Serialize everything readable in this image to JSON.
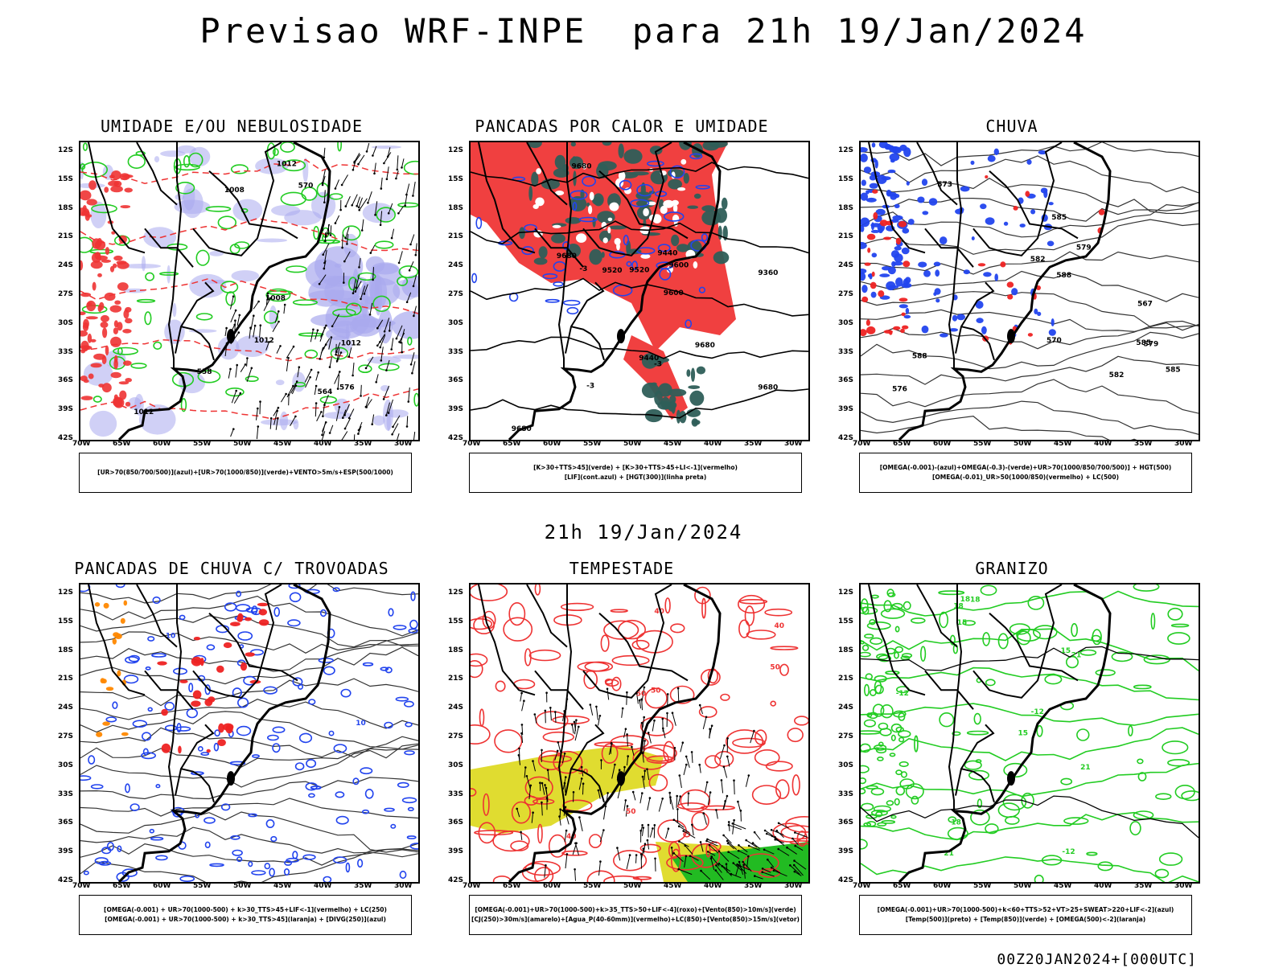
{
  "header": {
    "title": "Previsao WRF-INPE  para 21h 19/Jan/2024"
  },
  "mid_title": "21h 19/Jan/2024",
  "footer": "00Z20JAN2024+[000UTC]",
  "axes": {
    "lat_labels": [
      "12S",
      "15S",
      "18S",
      "21S",
      "24S",
      "27S",
      "30S",
      "33S",
      "36S",
      "39S",
      "42S"
    ],
    "lon_labels": [
      "70W",
      "65W",
      "60W",
      "55W",
      "50W",
      "45W",
      "40W",
      "35W",
      "30W"
    ]
  },
  "panels": [
    {
      "id": "umidade",
      "title": "UMIDADE E/OU NEBULOSIDADE",
      "legend": [
        "[UR>70(850/700/500)](azul)+[UR>70(1000/850)](verde)+VENTO>5m/s+ESP(500/1000)"
      ],
      "contour_labels": [
        "1012",
        "1012",
        "1008",
        "1012",
        "1008",
        "1012",
        "576",
        "570",
        "564",
        "558"
      ],
      "colors": {
        "fill": "#a9a9ee",
        "line": "#22cc22",
        "pressure": "#000000",
        "thickness": "#ee3333"
      }
    },
    {
      "id": "pancadas-calor",
      "title": "PANCADAS POR CALOR E UMIDADE",
      "legend": [
        "[K>30+TTS>45](verde) + [K>30+TTS>45+LI<-1](vermelho)",
        "[LIF](cont.azul) + [HGT(300)](linha preta)"
      ],
      "contour_labels": [
        "9680",
        "9680",
        "9680",
        "9680",
        "9680",
        "9600",
        "9600",
        "9520",
        "9520",
        "9440",
        "9440",
        "9360",
        "-3",
        "-3",
        "-3"
      ],
      "colors": {
        "red": "#f04040",
        "green": "#2e5e58",
        "blue": "#2244ee"
      }
    },
    {
      "id": "chuva",
      "title": "CHUVA",
      "legend": [
        "[OMEGA(-0.001)-(azul)+OMEGA(-0.3)-(verde)+UR>70(1000/850/700/500)] + HGT(500)",
        "[OMEGA(-0.01)_UR>50(1000/850)(vermelho) + LC(500)"
      ],
      "contour_labels": [
        "588",
        "588",
        "585",
        "585",
        "585",
        "582",
        "582",
        "579",
        "579",
        "576",
        "573",
        "570",
        "567"
      ],
      "colors": {
        "blue": "#2244ee",
        "red": "#ee2222"
      }
    },
    {
      "id": "trovoadas",
      "title": "PANCADAS DE CHUVA C/ TROVOADAS",
      "legend": [
        "[OMEGA(-0.001) + UR>70(1000-500) + k>30_TTS>45+LIF<-1](vermelho) + LC(250)",
        "[OMEGA(-0.001) + UR>70(1000-500) + k>30_TTS>45](laranja) + [DIVG(250)](azul)"
      ],
      "contour_labels": [
        "10",
        "10"
      ],
      "colors": {
        "blue": "#2244ee",
        "red": "#ee2222",
        "orange": "#ff8800"
      }
    },
    {
      "id": "tempestade",
      "title": "TEMPESTADE",
      "legend": [
        "[OMEGA(-0.001)+UR>70(1000-500)+k>35_TTS>50+LIF<-4](roxo)+[Vento(850)>10m/s](verde)",
        "[CJ(250)>30m/s](amarelo)+[Agua_P(40-60mm)](vermelho)+LC(850)+[Vento(850)>15m/s](vetor)"
      ],
      "contour_labels": [
        "40",
        "40",
        "40",
        "50",
        "50",
        "50",
        "50",
        "50"
      ],
      "colors": {
        "yellow": "#e0dc30",
        "red": "#ee3333",
        "green": "#22bb22"
      }
    },
    {
      "id": "granizo",
      "title": "GRANIZO",
      "legend": [
        "[OMEGA(-0.001)+UR>70(1000-500)+k<60+TTS>52+VT>25+SWEAT>220+LIF<-2](azul)",
        "[Temp(500)](preto) + [Temp(850)](verde) + [OMEGA(500)<-2](laranja)"
      ],
      "contour_labels": [
        "21",
        "21",
        "21",
        "18",
        "18",
        "18",
        "18",
        "15",
        "15",
        "15",
        "-12",
        "-12",
        "-12"
      ],
      "colors": {
        "green": "#22cc22",
        "black": "#000000"
      }
    }
  ]
}
